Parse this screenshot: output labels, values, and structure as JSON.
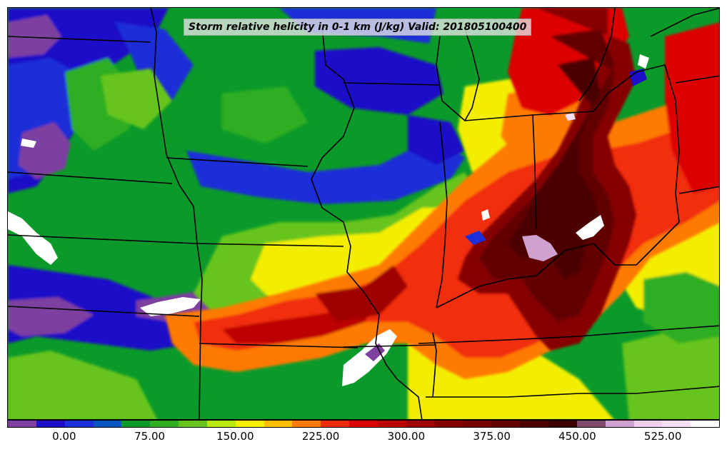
{
  "title": "Storm relative helicity in 0-1 km (J/kg) Valid: 201805100400",
  "colorbar": {
    "colors": [
      "#7e3fa0",
      "#1d10c8",
      "#1d2fd8",
      "#0b55c0",
      "#0b9a2a",
      "#2fae22",
      "#66c41c",
      "#b7ea0c",
      "#f3ee00",
      "#ffbf00",
      "#ff7a00",
      "#f12e0a",
      "#dd0000",
      "#bd0000",
      "#a00000",
      "#860000",
      "#760000",
      "#620000",
      "#4c0000",
      "#3b0000",
      "#7f4b66",
      "#cfa1cf",
      "#eed0ee",
      "#f7e0f7",
      "#ffffff"
    ],
    "tick_labels": [
      "0.00",
      "75.00",
      "150.00",
      "225.00",
      "300.00",
      "375.00",
      "450.00",
      "525.00"
    ]
  },
  "map": {
    "field_colors": {
      "background": "#0b9a2a",
      "low_blue": "#1d10c8",
      "purple": "#7e3fa0",
      "lime": "#66c41c",
      "yellow": "#f3ee00",
      "orange": "#ff7a00",
      "red": "#dd0000",
      "dark_red": "#760000",
      "very_dark_red": "#4c0000",
      "pink": "#cfa1cf",
      "white": "#ffffff",
      "border": "#000000"
    }
  }
}
